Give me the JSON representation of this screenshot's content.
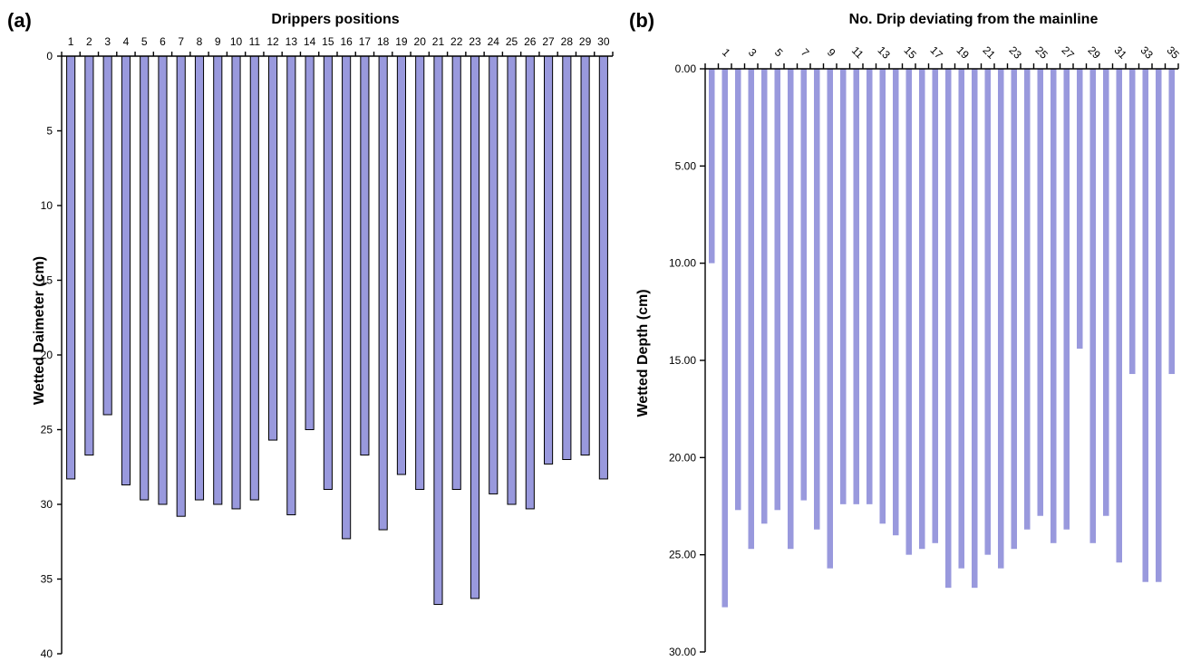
{
  "chart_data": [
    {
      "type": "bar",
      "panel": "(a)",
      "title": "Drippers positions",
      "xlabel": "",
      "ylabel": "Wetted Daimeter (cm)",
      "ylim": [
        0,
        40
      ],
      "yticks": [
        0,
        5,
        10,
        15,
        20,
        25,
        30,
        35,
        40
      ],
      "ytick_labels": [
        "0",
        "5",
        "10",
        "15",
        "20",
        "25",
        "30",
        "35",
        "40"
      ],
      "y_inverted": true,
      "x_axis_position": "top",
      "bar_color": "#9999dd",
      "bar_edge": "#000000",
      "categories": [
        "1",
        "2",
        "3",
        "4",
        "5",
        "6",
        "7",
        "8",
        "9",
        "10",
        "11",
        "12",
        "13",
        "14",
        "15",
        "16",
        "17",
        "18",
        "19",
        "20",
        "21",
        "22",
        "23",
        "24",
        "25",
        "26",
        "27",
        "28",
        "29",
        "30"
      ],
      "values": [
        28.3,
        26.7,
        24.0,
        28.7,
        29.7,
        30.0,
        30.8,
        29.7,
        30.0,
        30.3,
        29.7,
        25.7,
        30.7,
        25.0,
        29.0,
        32.3,
        26.7,
        31.7,
        28.0,
        29.0,
        36.7,
        29.0,
        36.3,
        29.3,
        30.0,
        30.3,
        27.3,
        27.0,
        26.7,
        28.3
      ]
    },
    {
      "type": "bar",
      "panel": "(b)",
      "title": "No. Drip deviating from the mainline",
      "xlabel": "",
      "ylabel": "Wetted Depth (cm)",
      "ylim": [
        0,
        30
      ],
      "yticks": [
        0,
        5,
        10,
        15,
        20,
        25,
        30
      ],
      "ytick_labels": [
        "0.00",
        "5.00",
        "10.00",
        "15.00",
        "20.00",
        "25.00",
        "30.00"
      ],
      "y_inverted": true,
      "x_axis_position": "top",
      "bar_color": "#9999dd",
      "tick_labels": [
        "1",
        "3",
        "5",
        "7",
        "9",
        "11",
        "13",
        "15",
        "17",
        "19",
        "21",
        "23",
        "25",
        "27",
        "29",
        "31",
        "33",
        "35"
      ],
      "values": [
        10.0,
        27.7,
        22.7,
        24.7,
        23.4,
        22.7,
        24.7,
        22.2,
        23.7,
        25.7,
        22.4,
        22.4,
        22.4,
        23.4,
        24.0,
        25.0,
        24.7,
        24.4,
        26.7,
        25.7,
        26.7,
        25.0,
        25.7,
        24.7,
        23.7,
        23.0,
        24.4,
        23.7,
        14.4,
        24.4,
        23.0,
        25.4,
        15.7,
        26.4,
        26.4,
        15.7
      ]
    }
  ]
}
